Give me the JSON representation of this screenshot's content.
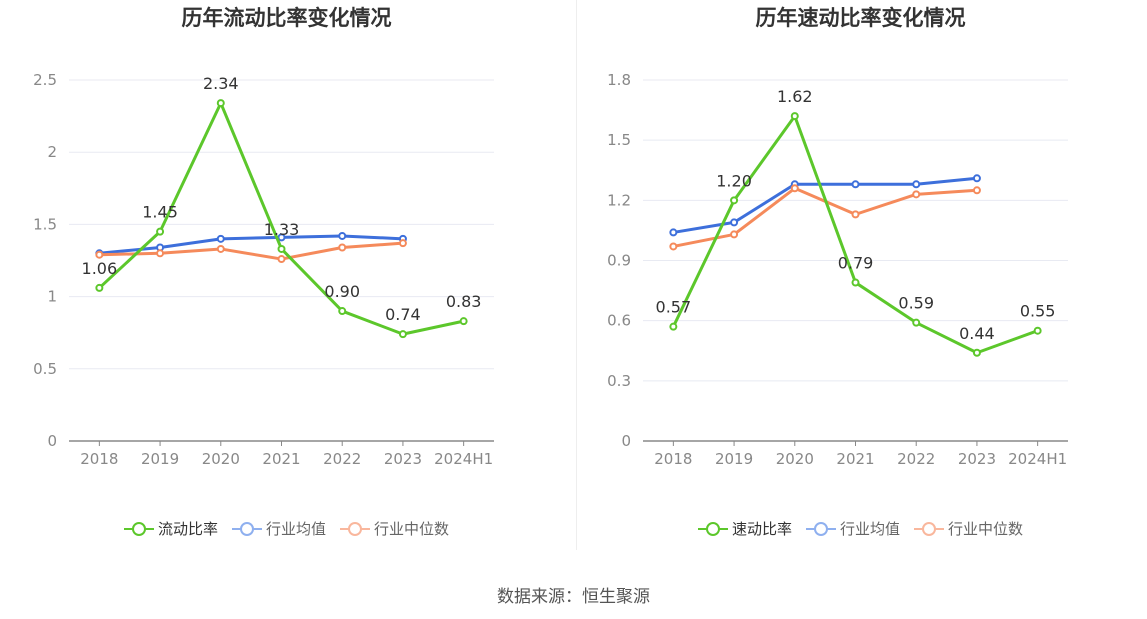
{
  "charts": [
    {
      "title": "历年流动比率变化情况",
      "legend": [
        "流动比率",
        "行业均值",
        "行业中位数"
      ]
    },
    {
      "title": "历年速动比率变化情况",
      "legend": [
        "速动比率",
        "行业均值",
        "行业中位数"
      ]
    }
  ],
  "source": "数据来源：恒生聚源",
  "colors": {
    "primary": "#5cc72b",
    "average": "#3d6fdb",
    "median": "#f58a5b",
    "legend_average": "#8fb0ef",
    "legend_median": "#f9b79d",
    "grid": "#e8eaf2",
    "axis": "#888888",
    "tick_text": "#888888",
    "label_text": "#333333"
  },
  "chart_data": [
    {
      "type": "line",
      "title": "历年流动比率变化情况",
      "categories": [
        "2018",
        "2019",
        "2020",
        "2021",
        "2022",
        "2023",
        "2024H1"
      ],
      "ylim": [
        0,
        2.5
      ],
      "yticks": [
        0,
        0.5,
        1,
        1.5,
        2,
        2.5
      ],
      "ytick_labels": [
        "0",
        "0.5",
        "1",
        "1.5",
        "2",
        "2.5"
      ],
      "grid": true,
      "legend_position": "bottom",
      "series": [
        {
          "name": "流动比率",
          "values": [
            1.06,
            1.45,
            2.34,
            1.33,
            0.9,
            0.74,
            0.83
          ],
          "labels": [
            "1.06",
            "1.45",
            "2.34",
            "1.33",
            "0.90",
            "0.74",
            "0.83"
          ]
        },
        {
          "name": "行业均值",
          "values": [
            1.3,
            1.34,
            1.4,
            1.41,
            1.42,
            1.4,
            null
          ]
        },
        {
          "name": "行业中位数",
          "values": [
            1.29,
            1.3,
            1.33,
            1.26,
            1.34,
            1.37,
            null
          ]
        }
      ]
    },
    {
      "type": "line",
      "title": "历年速动比率变化情况",
      "categories": [
        "2018",
        "2019",
        "2020",
        "2021",
        "2022",
        "2023",
        "2024H1"
      ],
      "ylim": [
        0,
        1.8
      ],
      "yticks": [
        0,
        0.3,
        0.6,
        0.9,
        1.2,
        1.5,
        1.8
      ],
      "ytick_labels": [
        "0",
        "0.3",
        "0.6",
        "0.9",
        "1.2",
        "1.5",
        "1.8"
      ],
      "grid": true,
      "legend_position": "bottom",
      "series": [
        {
          "name": "速动比率",
          "values": [
            0.57,
            1.2,
            1.62,
            0.79,
            0.59,
            0.44,
            0.55
          ],
          "labels": [
            "0.57",
            "1.20",
            "1.62",
            "0.79",
            "0.59",
            "0.44",
            "0.55"
          ]
        },
        {
          "name": "行业均值",
          "values": [
            1.04,
            1.09,
            1.28,
            1.28,
            1.28,
            1.31,
            null
          ]
        },
        {
          "name": "行业中位数",
          "values": [
            0.97,
            1.03,
            1.26,
            1.13,
            1.23,
            1.25,
            null
          ]
        }
      ]
    }
  ]
}
